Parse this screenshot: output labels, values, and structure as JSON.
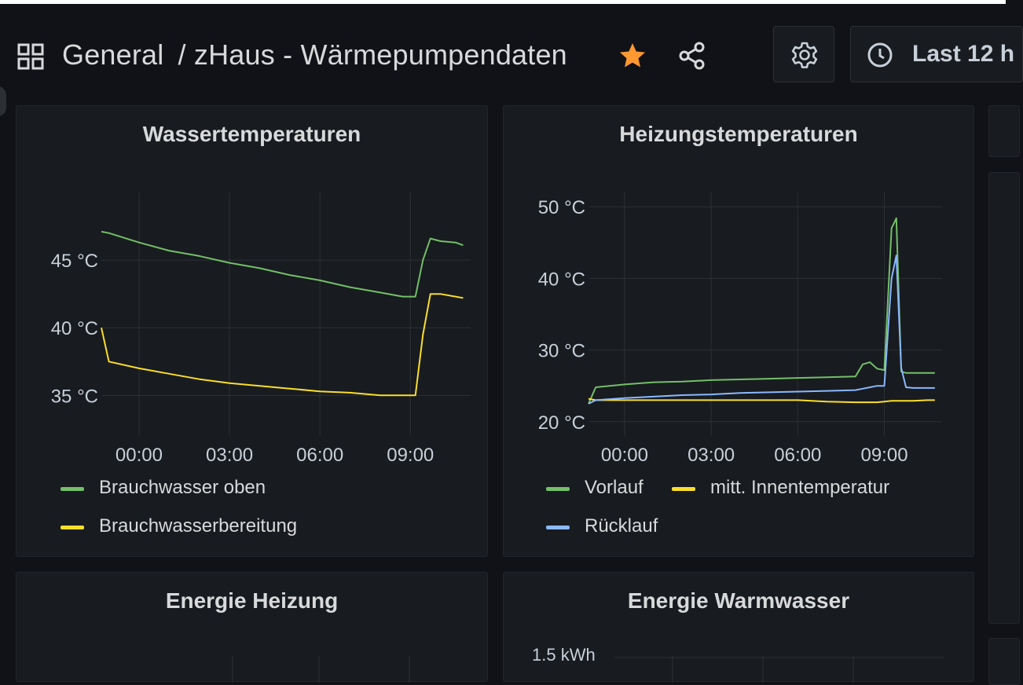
{
  "header": {
    "breadcrumb_folder": "General",
    "breadcrumb_dashboard": "/ zHaus - Wärmepumpendaten",
    "time_picker_label": "Last 12 h",
    "accent_star_color": "#ff9830"
  },
  "colors": {
    "green": "#73bf69",
    "yellow": "#fade2a",
    "blue": "#8ab8ff"
  },
  "panels": {
    "wasser": {
      "title": "Wassertemperaturen",
      "legend": [
        "Brauchwasser oben",
        "Brauchwasserbereitung"
      ]
    },
    "heizung": {
      "title": "Heizungstemperaturen",
      "legend": [
        "Vorlauf",
        "mitt. Innentemperatur",
        "Rücklauf"
      ]
    },
    "energie_heizung": {
      "title": "Energie Heizung"
    },
    "energie_warmwasser": {
      "title": "Energie Warmwasser",
      "first_tick": "1.5 kWh"
    }
  },
  "chart_data": [
    {
      "type": "line",
      "title": "Wassertemperaturen",
      "x_ticks": [
        "00:00",
        "03:00",
        "06:00",
        "09:00"
      ],
      "y_ticks": [
        "35 °C",
        "40 °C",
        "45 °C"
      ],
      "x": [
        "22:45",
        "23:00",
        "00:00",
        "01:00",
        "02:00",
        "03:00",
        "04:00",
        "05:00",
        "06:00",
        "07:00",
        "08:00",
        "08:45",
        "09:10",
        "09:25",
        "09:40",
        "10:00",
        "10:30",
        "10:45"
      ],
      "ylim": [
        32,
        50
      ],
      "series": [
        {
          "name": "Brauchwasser oben",
          "color": "#73bf69",
          "values": [
            47.1,
            47.0,
            46.3,
            45.7,
            45.3,
            44.8,
            44.4,
            43.9,
            43.5,
            43.0,
            42.6,
            42.3,
            42.3,
            45.0,
            46.6,
            46.4,
            46.3,
            46.1
          ]
        },
        {
          "name": "Brauchwasserbereitung",
          "color": "#fade2a",
          "values": [
            40.0,
            37.5,
            37.0,
            36.6,
            36.2,
            35.9,
            35.7,
            35.5,
            35.3,
            35.2,
            35.0,
            35.0,
            35.0,
            39.5,
            42.5,
            42.5,
            42.3,
            42.2
          ]
        }
      ]
    },
    {
      "type": "line",
      "title": "Heizungstemperaturen",
      "x_ticks": [
        "00:00",
        "03:00",
        "06:00",
        "09:00"
      ],
      "y_ticks": [
        "20 °C",
        "30 °C",
        "40 °C",
        "50 °C"
      ],
      "x": [
        "22:45",
        "23:00",
        "00:00",
        "01:00",
        "02:00",
        "03:00",
        "04:00",
        "05:00",
        "06:00",
        "07:00",
        "08:00",
        "08:15",
        "08:30",
        "08:45",
        "09:00",
        "09:15",
        "09:25",
        "09:35",
        "09:45",
        "10:00",
        "10:30",
        "10:45"
      ],
      "ylim": [
        18,
        52
      ],
      "series": [
        {
          "name": "Vorlauf",
          "color": "#73bf69",
          "values": [
            22.5,
            24.8,
            25.2,
            25.5,
            25.6,
            25.8,
            25.9,
            26.0,
            26.1,
            26.2,
            26.3,
            28.0,
            28.3,
            27.4,
            27.2,
            47.0,
            48.4,
            27.0,
            26.8,
            26.8,
            26.8,
            26.8
          ]
        },
        {
          "name": "mitt. Innentemperatur",
          "color": "#fade2a",
          "values": [
            23.2,
            23.0,
            23.0,
            23.0,
            23.0,
            23.0,
            23.0,
            23.0,
            23.0,
            22.8,
            22.7,
            22.7,
            22.7,
            22.7,
            22.8,
            22.9,
            22.9,
            22.9,
            22.9,
            22.9,
            23.0,
            23.0
          ]
        },
        {
          "name": "Rücklauf",
          "color": "#8ab8ff",
          "values": [
            22.5,
            23.0,
            23.3,
            23.5,
            23.7,
            23.8,
            24.0,
            24.1,
            24.2,
            24.3,
            24.4,
            24.6,
            24.8,
            25.0,
            25.0,
            40.0,
            43.2,
            27.5,
            24.8,
            24.7,
            24.7,
            24.7
          ]
        }
      ]
    }
  ]
}
